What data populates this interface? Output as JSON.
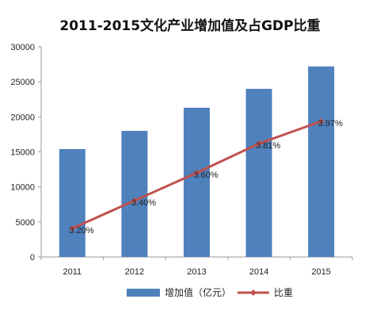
{
  "chart_data": {
    "type": "bar",
    "title": "2011-2015文化产业增加值及占GDP比重",
    "categories": [
      "2011",
      "2012",
      "2013",
      "2014",
      "2015"
    ],
    "ylim": [
      0,
      30000
    ],
    "yticks": [
      "0",
      "5000",
      "10000",
      "15000",
      "20000",
      "25000",
      "30000"
    ],
    "grid": false,
    "legend_position": "bottom",
    "series": [
      {
        "name": "增加值（亿元）",
        "type": "bar",
        "color": "#4F81BD",
        "values": [
          15400,
          18000,
          21300,
          24000,
          27200
        ]
      },
      {
        "name": "比重",
        "type": "line",
        "color": "#C0504D",
        "values": [
          3.2,
          3.4,
          3.6,
          3.81,
          3.97
        ],
        "labels": [
          "3.20%",
          "3.40%",
          "3.60%",
          "3.81%",
          "3.97%"
        ]
      }
    ]
  }
}
